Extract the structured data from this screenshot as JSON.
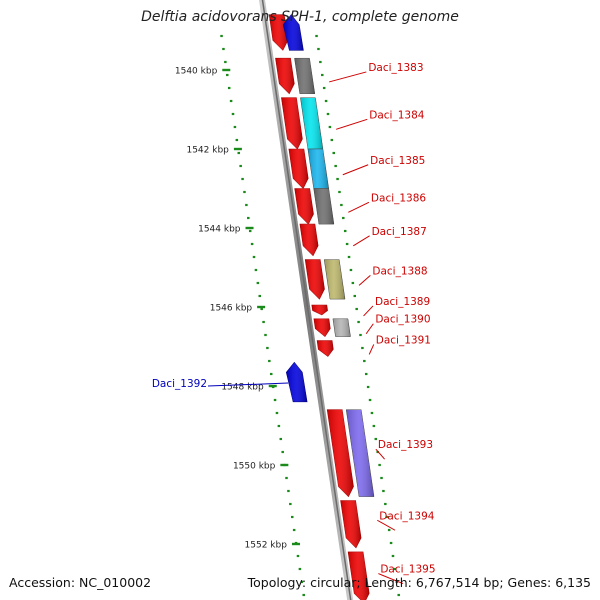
{
  "title": "Delftia acidovorans SPH-1, complete genome",
  "footer": {
    "accession": "Accession: NC_010002",
    "topology": "Topology: circular; Length: 6,767,514 bp; Genes: 6,135"
  },
  "colors": {
    "backbone": "#8a8a8a",
    "ticks": "#1a8a1a",
    "fwd_label": "#cc0000",
    "rev_label": "#0000bb",
    "cds": "#ee0000",
    "cds_rev": "#0000dd",
    "cog_gray": "#6e6e6e",
    "cog_cyan": "#00e5ee",
    "cog_skyblue": "#19b5ee",
    "cog_khaki": "#bdb76b",
    "cog_lightgray": "#b4b4b4",
    "cog_purple": "#7b68ee"
  },
  "scale": {
    "ticks": [
      {
        "label": "1540 kbp",
        "kbp": 1540
      },
      {
        "label": "1542 kbp",
        "kbp": 1542
      },
      {
        "label": "1544 kbp",
        "kbp": 1544
      },
      {
        "label": "1546 kbp",
        "kbp": 1546
      },
      {
        "label": "1548 kbp",
        "kbp": 1548
      },
      {
        "label": "1550 kbp",
        "kbp": 1550
      },
      {
        "label": "1552 kbp",
        "kbp": 1552
      }
    ]
  },
  "genes": [
    {
      "id": "g_top1",
      "strand": "+",
      "start": 1538.6,
      "end": 1539.5,
      "cog": "cds",
      "label": ""
    },
    {
      "id": "g_top2",
      "strand": "-",
      "start": 1538.6,
      "end": 1539.5,
      "cog": "cds_rev",
      "label": ""
    },
    {
      "id": "Daci_1383",
      "strand": "+",
      "start": 1539.7,
      "end": 1540.6,
      "cog": "cog_gray",
      "label": "Daci_1383"
    },
    {
      "id": "Daci_1384",
      "strand": "+",
      "start": 1540.7,
      "end": 1542.0,
      "cog": "cog_cyan",
      "label": "Daci_1384"
    },
    {
      "id": "Daci_1385",
      "strand": "+",
      "start": 1542.0,
      "end": 1543.0,
      "cog": "cog_skyblue",
      "label": "Daci_1385"
    },
    {
      "id": "Daci_1386",
      "strand": "+",
      "start": 1543.0,
      "end": 1543.9,
      "cog": "cog_gray",
      "label": "Daci_1386"
    },
    {
      "id": "Daci_1387",
      "strand": "+",
      "start": 1543.9,
      "end": 1544.7,
      "cog": "cds",
      "label": "Daci_1387"
    },
    {
      "id": "Daci_1388",
      "strand": "+",
      "start": 1544.8,
      "end": 1545.8,
      "cog": "cog_khaki",
      "label": "Daci_1388"
    },
    {
      "id": "Daci_1389",
      "strand": "+",
      "start": 1545.95,
      "end": 1546.2,
      "cog": "cds",
      "label": "Daci_1389"
    },
    {
      "id": "Daci_1390",
      "strand": "+",
      "start": 1546.3,
      "end": 1546.75,
      "cog": "cog_lightgray",
      "label": "Daci_1390"
    },
    {
      "id": "Daci_1391",
      "strand": "+",
      "start": 1546.85,
      "end": 1547.25,
      "cog": "cds",
      "label": "Daci_1391"
    },
    {
      "id": "Daci_1392",
      "strand": "-",
      "start": 1547.4,
      "end": 1548.4,
      "cog": "cds_rev",
      "label": "Daci_1392"
    },
    {
      "id": "Daci_1393",
      "strand": "+",
      "start": 1548.6,
      "end": 1550.8,
      "cog": "cog_purple",
      "label": "Daci_1393"
    },
    {
      "id": "Daci_1394",
      "strand": "+",
      "start": 1550.9,
      "end": 1552.1,
      "cog": "cds",
      "label": "Daci_1394"
    },
    {
      "id": "Daci_1395",
      "strand": "+",
      "start": 1552.2,
      "end": 1553.5,
      "cog": "cds",
      "label": "Daci_1395"
    }
  ]
}
